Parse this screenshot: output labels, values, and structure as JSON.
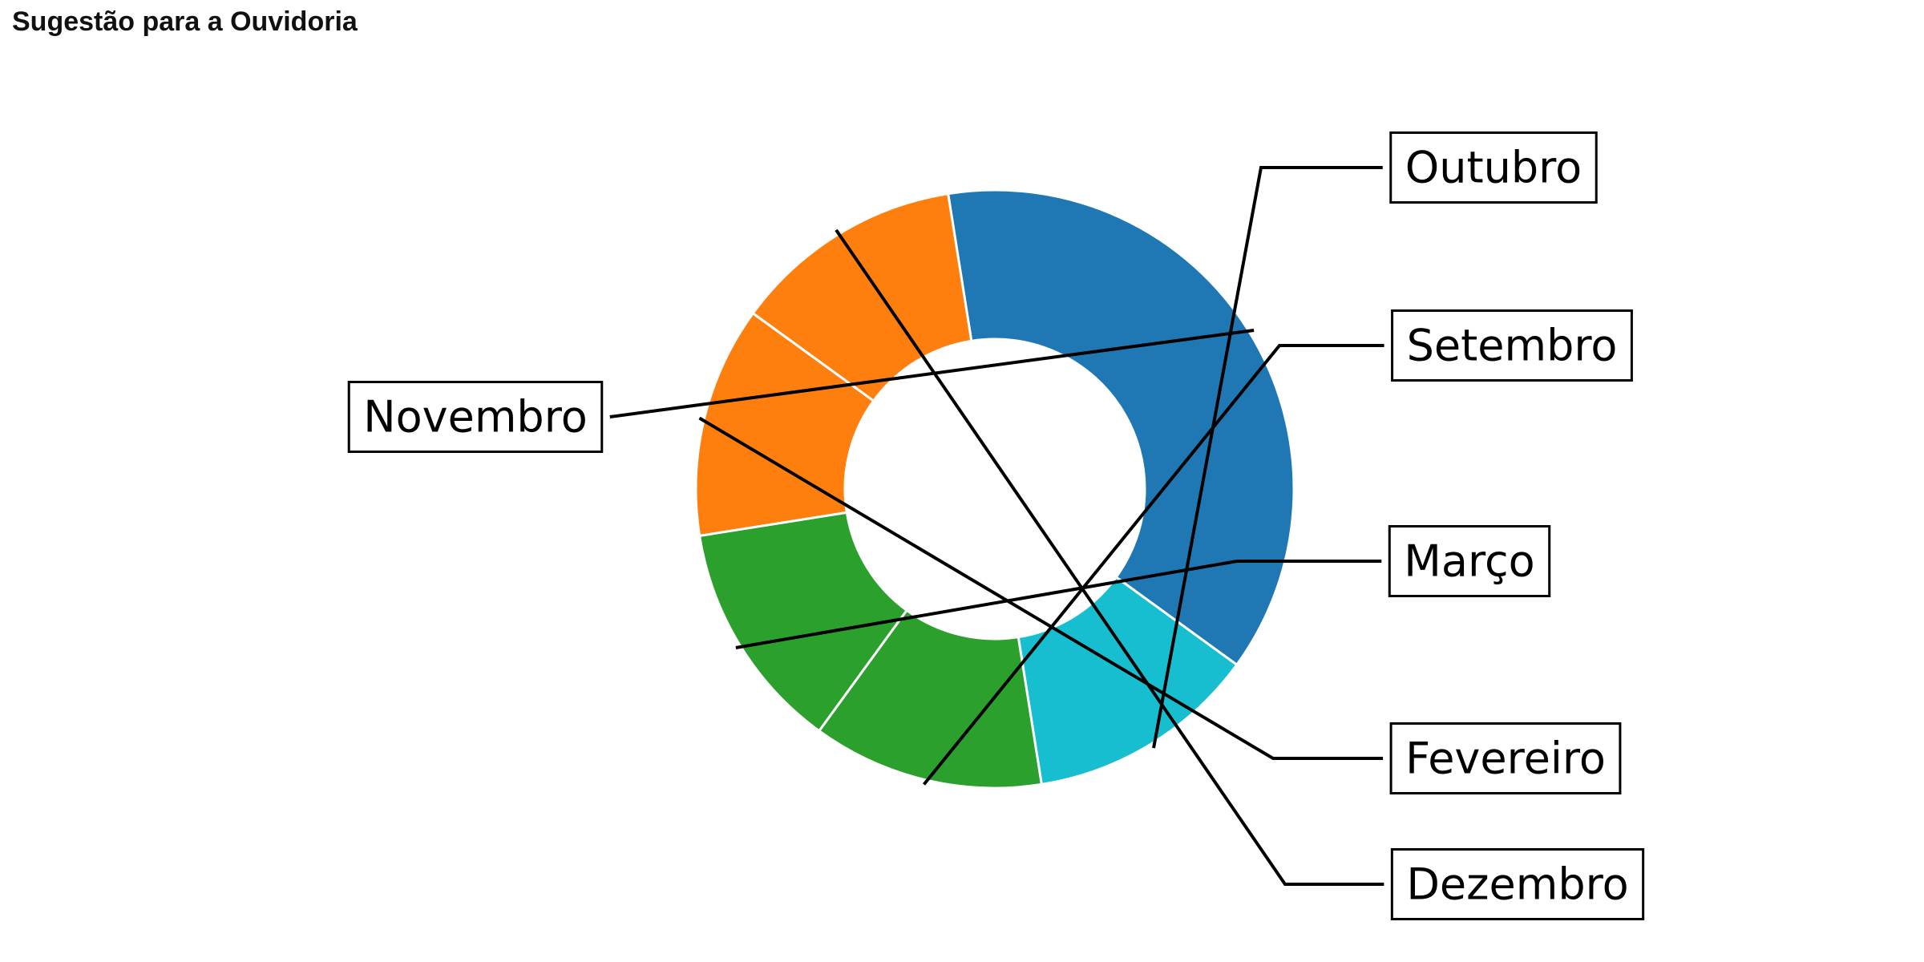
{
  "page": {
    "title": "Sugestão para a Ouvidoria"
  },
  "chart_data": {
    "type": "pie",
    "donut": true,
    "title": "",
    "legend": "none",
    "categories": [
      "Novembro",
      "Outubro",
      "Setembro",
      "Março",
      "Fevereiro",
      "Dezembro"
    ],
    "values": [
      3,
      1,
      1,
      1,
      1,
      1
    ],
    "colors": [
      "#1f77b4",
      "#17becf",
      "#2ca02c",
      "#2ca02c",
      "#ff7f0e",
      "#ff7f0e"
    ]
  }
}
